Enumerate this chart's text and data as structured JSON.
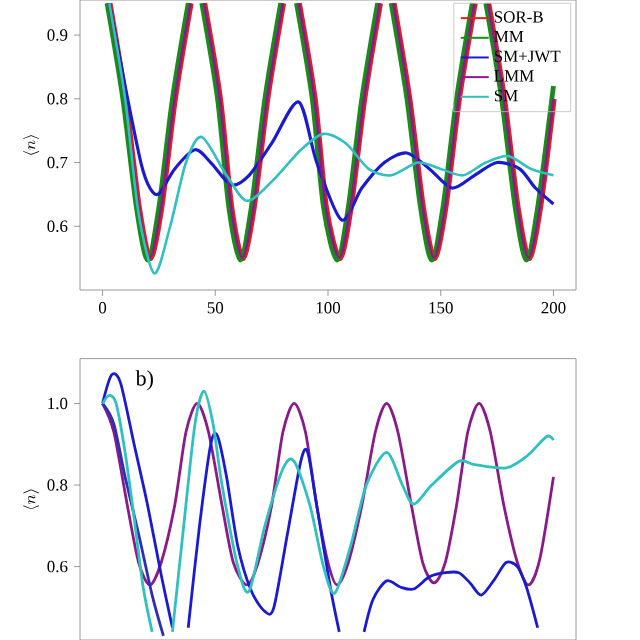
{
  "chart_data": [
    {
      "type": "line",
      "ylabel": "\\langle n\\rangle",
      "xlim": [
        -10,
        210
      ],
      "ylim": [
        0.5,
        0.955
      ],
      "xticks": [
        0,
        50,
        100,
        150,
        200
      ],
      "yticks": [
        0.6,
        0.7,
        0.8,
        0.9
      ],
      "legend": "top right",
      "grid": false,
      "marker": "none",
      "x": [
        3,
        10,
        16,
        21,
        26,
        32,
        39,
        42,
        45,
        52,
        57,
        62,
        67,
        73,
        80,
        84,
        87,
        94,
        99,
        105,
        110,
        116,
        123,
        126,
        129,
        136,
        142,
        147,
        152,
        158,
        165,
        168,
        171,
        178,
        184,
        189,
        194,
        200
      ],
      "series": [
        {
          "name": "SOR-B",
          "color": "#e02020",
          "values": [
            0.95,
            0.8,
            0.63,
            0.55,
            0.63,
            0.8,
            0.95,
            null,
            0.95,
            0.8,
            0.63,
            0.55,
            0.63,
            0.8,
            0.95,
            null,
            0.95,
            0.8,
            0.63,
            0.55,
            0.63,
            0.8,
            0.95,
            null,
            0.95,
            0.8,
            0.63,
            0.55,
            0.63,
            0.8,
            0.95,
            null,
            0.95,
            0.8,
            0.63,
            0.55,
            0.63,
            0.8
          ]
        },
        {
          "name": "MM",
          "color": "#1a8a1a",
          "x": [
            2,
            9,
            15,
            20,
            25,
            31,
            38,
            41,
            44,
            51,
            56,
            61,
            66,
            72,
            79,
            83,
            86,
            93,
            98,
            104,
            109,
            115,
            122,
            125,
            128,
            135,
            141,
            146,
            151,
            157,
            164,
            167,
            170,
            177,
            183,
            188,
            193,
            200
          ],
          "values": [
            0.95,
            0.8,
            0.63,
            0.547,
            0.63,
            0.8,
            0.95,
            null,
            0.95,
            0.8,
            0.63,
            0.547,
            0.63,
            0.8,
            0.95,
            null,
            0.95,
            0.8,
            0.63,
            0.547,
            0.63,
            0.8,
            0.95,
            null,
            0.95,
            0.8,
            0.63,
            0.547,
            0.63,
            0.8,
            0.95,
            null,
            0.95,
            0.8,
            0.63,
            0.547,
            0.63,
            0.82
          ]
        },
        {
          "name": "SM+JWT",
          "color": "#1a1ad0",
          "x": [
            3,
            10,
            17,
            21,
            25,
            32,
            41,
            48,
            57,
            65,
            75,
            87,
            95,
            106,
            115,
            125,
            135,
            145,
            155,
            165,
            175,
            185,
            192,
            200
          ],
          "values": [
            0.95,
            0.82,
            0.7,
            0.66,
            0.651,
            0.69,
            0.72,
            0.7,
            0.665,
            0.68,
            0.73,
            0.795,
            0.7,
            0.61,
            0.66,
            0.7,
            0.715,
            0.69,
            0.66,
            0.68,
            0.7,
            0.69,
            0.66,
            0.635
          ]
        },
        {
          "name": "LMM",
          "color": "#8a1a8a",
          "values": [
            0.95,
            0.8,
            0.63,
            0.551,
            0.63,
            0.8,
            0.95,
            null,
            0.95,
            0.8,
            0.63,
            0.551,
            0.63,
            0.8,
            0.95,
            null,
            0.95,
            0.8,
            0.63,
            0.551,
            0.63,
            0.8,
            0.95,
            null,
            0.95,
            0.8,
            0.63,
            0.551,
            0.63,
            0.8,
            0.95,
            null,
            0.95,
            0.8,
            0.63,
            0.551,
            0.63,
            0.8
          ]
        },
        {
          "name": "SM",
          "color": "#30c0c0",
          "x": [
            3,
            10,
            16,
            23,
            30,
            37,
            44,
            55,
            64,
            75,
            88,
            98,
            108,
            118,
            128,
            140,
            150,
            160,
            170,
            180,
            190,
            200
          ],
          "values": [
            0.95,
            0.8,
            0.62,
            0.526,
            0.6,
            0.7,
            0.74,
            0.68,
            0.64,
            0.67,
            0.72,
            0.745,
            0.73,
            0.69,
            0.68,
            0.7,
            0.69,
            0.68,
            0.7,
            0.71,
            0.69,
            0.68
          ]
        }
      ]
    },
    {
      "type": "line",
      "ylabel": "\\langle n\\rangle",
      "xlim": [
        -10,
        210
      ],
      "ylim": [
        0.42,
        1.11
      ],
      "yticks": [
        0.6,
        0.8,
        {
          "value": 1.0,
          "label": "1.0"
        }
      ],
      "tick_labels": "y",
      "grid": false,
      "marker": "none",
      "annotations": [
        "b)"
      ],
      "series": [
        {
          "color": "#8a1a8a",
          "x": [
            0,
            5,
            11,
            16,
            21,
            26,
            32,
            37,
            42,
            47,
            53,
            58,
            64,
            69,
            75,
            80,
            85,
            90,
            95,
            100,
            104,
            109,
            115,
            121,
            126,
            131,
            137,
            142,
            147,
            152,
            157,
            162,
            167,
            172,
            178,
            184,
            189,
            194,
            200
          ],
          "values": [
            1.0,
            0.93,
            0.75,
            0.61,
            0.555,
            0.61,
            0.75,
            0.93,
            1.0,
            0.93,
            0.75,
            0.61,
            0.555,
            0.61,
            0.75,
            0.93,
            1.0,
            0.93,
            0.75,
            0.61,
            0.555,
            0.61,
            0.75,
            0.93,
            1.0,
            0.93,
            0.75,
            0.61,
            0.56,
            0.61,
            0.75,
            0.93,
            1.0,
            0.93,
            0.75,
            0.61,
            0.555,
            0.62,
            0.82
          ]
        },
        {
          "color": "#1a1ad0",
          "x": [
            0,
            4,
            8,
            14,
            20,
            26,
            31,
            34,
            38,
            43,
            48,
            51,
            55,
            60,
            66,
            72,
            76,
            82,
            88,
            91,
            95,
            101,
            105,
            110,
            116,
            120,
            126,
            132,
            138,
            145,
            152,
            158,
            163,
            168,
            174,
            179,
            184,
            188,
            193
          ],
          "values": [
            1.0,
            1.07,
            1.05,
            0.9,
            0.75,
            0.58,
            0.45,
            null,
            0.45,
            0.7,
            0.9,
            0.92,
            0.82,
            0.65,
            0.54,
            0.49,
            0.5,
            0.68,
            0.86,
            0.88,
            0.75,
            0.55,
            0.44,
            null,
            0.44,
            0.52,
            0.565,
            0.55,
            0.545,
            0.575,
            0.585,
            0.585,
            0.56,
            0.53,
            0.57,
            0.61,
            0.6,
            0.55,
            0.45
          ]
        },
        {
          "color": "#2d2db8",
          "x": [
            0,
            5,
            10,
            16,
            22,
            27
          ],
          "values": [
            1.0,
            0.95,
            0.82,
            0.68,
            0.53,
            0.43
          ]
        },
        {
          "color": "#30c0c0",
          "x": [
            0,
            3,
            6,
            10,
            14,
            18,
            22,
            24,
            31,
            36,
            41,
            45,
            49,
            53,
            60,
            65,
            72,
            80,
            85,
            92,
            98,
            103,
            110,
            117,
            126,
            133,
            138,
            146,
            158,
            165,
            179,
            188,
            197,
            200
          ],
          "values": [
            1.0,
            1.02,
            1.0,
            0.88,
            0.72,
            0.55,
            0.44,
            null,
            0.44,
            0.7,
            0.95,
            1.03,
            0.95,
            0.8,
            0.6,
            0.54,
            0.7,
            0.84,
            0.858,
            0.75,
            0.6,
            0.535,
            0.65,
            0.8,
            0.88,
            0.8,
            0.753,
            0.8,
            0.858,
            0.85,
            0.842,
            0.87,
            0.919,
            0.91
          ]
        }
      ]
    }
  ]
}
